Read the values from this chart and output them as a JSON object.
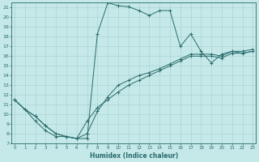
{
  "xlabel": "Humidex (Indice chaleur)",
  "xlim": [
    -0.3,
    23.3
  ],
  "ylim": [
    7,
    21.5
  ],
  "xticks": [
    0,
    1,
    2,
    3,
    4,
    5,
    6,
    7,
    8,
    9,
    10,
    11,
    12,
    13,
    14,
    15,
    16,
    17,
    18,
    19,
    20,
    21,
    22,
    23
  ],
  "yticks": [
    7,
    8,
    9,
    10,
    11,
    12,
    13,
    14,
    15,
    16,
    17,
    18,
    19,
    20,
    21
  ],
  "bg_color": "#c5e8e8",
  "line_color": "#2a6b6b",
  "grid_color": "#a5d0d0",
  "curve1_x": [
    0,
    1,
    2,
    3,
    4,
    5,
    6,
    7,
    8,
    9,
    10,
    11,
    12,
    13,
    14,
    15,
    16,
    17,
    18,
    19,
    20,
    21,
    22,
    23
  ],
  "curve1_y": [
    11.5,
    10.5,
    9.3,
    8.3,
    7.7,
    7.7,
    7.5,
    7.5,
    18.3,
    21.5,
    21.2,
    21.1,
    20.7,
    20.2,
    20.7,
    20.7,
    17.0,
    18.3,
    16.5,
    15.3,
    16.2,
    16.5,
    16.3,
    16.5
  ],
  "curve2_x": [
    0,
    1,
    2,
    3,
    4,
    5,
    6,
    7,
    8,
    9,
    10,
    11,
    12,
    13,
    14,
    15,
    16,
    17,
    18,
    19,
    20,
    21,
    22,
    23
  ],
  "curve2_y": [
    11.5,
    10.5,
    9.8,
    8.8,
    8.0,
    7.7,
    7.5,
    9.3,
    10.7,
    11.5,
    12.3,
    13.0,
    13.5,
    14.0,
    14.5,
    15.0,
    15.5,
    16.0,
    16.0,
    16.0,
    15.8,
    16.3,
    16.3,
    16.5
  ],
  "curve3_x": [
    0,
    1,
    2,
    3,
    4,
    5,
    6,
    7,
    8,
    9,
    10,
    11,
    12,
    13,
    14,
    15,
    16,
    17,
    18,
    19,
    20,
    21,
    22,
    23
  ],
  "curve3_y": [
    11.5,
    10.5,
    9.8,
    8.8,
    8.0,
    7.7,
    7.5,
    8.0,
    10.3,
    11.8,
    13.0,
    13.5,
    14.0,
    14.3,
    14.7,
    15.2,
    15.7,
    16.2,
    16.2,
    16.2,
    16.0,
    16.5,
    16.5,
    16.7
  ],
  "figsize": [
    3.2,
    2.0
  ],
  "dpi": 100
}
